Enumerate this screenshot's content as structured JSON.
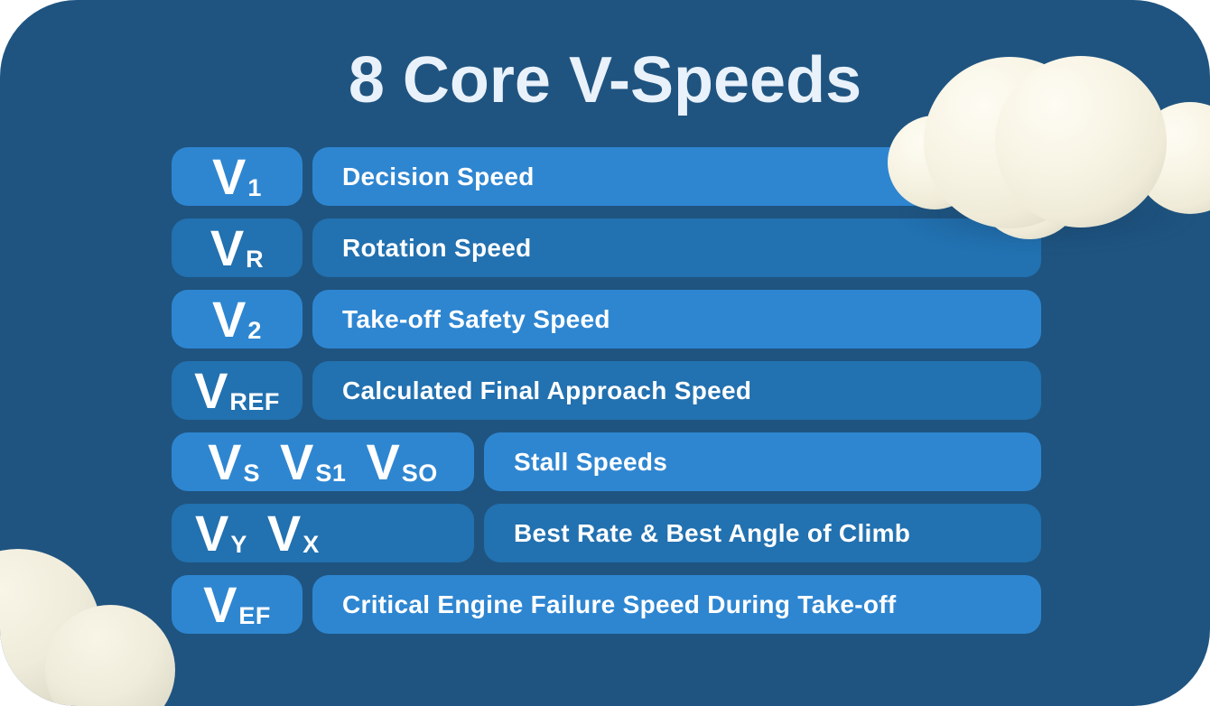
{
  "title": "8 Core V-Speeds",
  "rows": [
    {
      "symbols": [
        {
          "base": "V",
          "sub": "1"
        }
      ],
      "description": "Decision Speed",
      "variant": "bright",
      "wide": false
    },
    {
      "symbols": [
        {
          "base": "V",
          "sub": "R"
        }
      ],
      "description": "Rotation Speed",
      "variant": "dark",
      "wide": false
    },
    {
      "symbols": [
        {
          "base": "V",
          "sub": "2"
        }
      ],
      "description": "Take-off Safety Speed",
      "variant": "bright",
      "wide": false
    },
    {
      "symbols": [
        {
          "base": "V",
          "sub": "REF"
        }
      ],
      "description": "Calculated Final Approach Speed",
      "variant": "dark",
      "wide": false
    },
    {
      "symbols": [
        {
          "base": "V",
          "sub": "S"
        },
        {
          "base": "V",
          "sub": "S1"
        },
        {
          "base": "V",
          "sub": "SO"
        }
      ],
      "description": "Stall Speeds",
      "variant": "bright",
      "wide": true
    },
    {
      "symbols": [
        {
          "base": "V",
          "sub": "Y"
        },
        {
          "base": "V",
          "sub": "X"
        }
      ],
      "description": "Best Rate & Best Angle of Climb",
      "variant": "dark",
      "wide": true
    },
    {
      "symbols": [
        {
          "base": "V",
          "sub": "EF"
        }
      ],
      "description": "Critical Engine Failure Speed During Take-off",
      "variant": "bright",
      "wide": false
    }
  ],
  "colors": {
    "card_background": "#1F5480",
    "row_bright": "#2E86D1",
    "row_dark": "#2271B0",
    "title_text": "#E9F1FA",
    "row_text": "#FFFFFF",
    "cloud_cream": "#F6F2E2"
  },
  "decorations": {
    "cloud_top_right": "3d-cloud-icon",
    "cloud_bottom_left": "3d-cloud-icon"
  }
}
